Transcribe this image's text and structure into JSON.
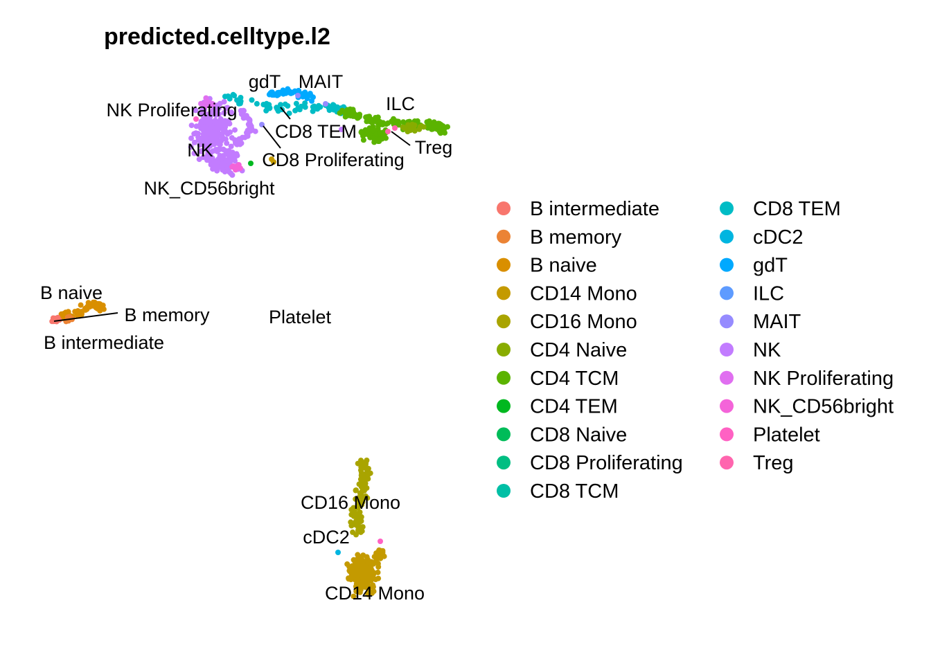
{
  "chart_data": {
    "type": "scatter",
    "title": "predicted.celltype.l2",
    "xlabel": "",
    "ylabel": "",
    "grid": false,
    "axes_visible": false,
    "legend_position": "right",
    "legend_columns": 2,
    "series": [
      {
        "name": "B intermediate",
        "color": "#F8766D"
      },
      {
        "name": "B memory",
        "color": "#EB8335"
      },
      {
        "name": "B naive",
        "color": "#D98F00"
      },
      {
        "name": "CD14 Mono",
        "color": "#C49A00"
      },
      {
        "name": "CD16 Mono",
        "color": "#A9A400"
      },
      {
        "name": "CD4 Naive",
        "color": "#88AC00"
      },
      {
        "name": "CD4 TCM",
        "color": "#5BB300"
      },
      {
        "name": "CD4 TEM",
        "color": "#00B81F"
      },
      {
        "name": "CD8 Naive",
        "color": "#00BC59"
      },
      {
        "name": "CD8 Proliferating",
        "color": "#00BE82"
      },
      {
        "name": "CD8 TCM",
        "color": "#00BFA5"
      },
      {
        "name": "CD8 TEM",
        "color": "#00BCC5"
      },
      {
        "name": "cDC2",
        "color": "#00B5E0"
      },
      {
        "name": "gdT",
        "color": "#00A9FF"
      },
      {
        "name": "ILC",
        "color": "#5E9BFF"
      },
      {
        "name": "MAIT",
        "color": "#968BFF"
      },
      {
        "name": "NK",
        "color": "#C27CFF"
      },
      {
        "name": "NK Proliferating",
        "color": "#E06FF0"
      },
      {
        "name": "NK_CD56bright",
        "color": "#F464D9"
      },
      {
        "name": "Platelet",
        "color": "#FF61C3"
      },
      {
        "name": "Treg",
        "color": "#FF65AE"
      }
    ],
    "cluster_labels": [
      {
        "text": "gdT",
        "x": 382,
        "y": 118
      },
      {
        "text": "MAIT",
        "x": 463,
        "y": 118
      },
      {
        "text": "ILC",
        "x": 578,
        "y": 150
      },
      {
        "text": "NK Proliferating",
        "x": 248,
        "y": 159
      },
      {
        "text": "CD8 TEM",
        "x": 456,
        "y": 190
      },
      {
        "text": "Treg",
        "x": 626,
        "y": 213
      },
      {
        "text": "NK",
        "x": 289,
        "y": 217
      },
      {
        "text": "CD8 Proliferating",
        "x": 481,
        "y": 231
      },
      {
        "text": "NK_CD56bright",
        "x": 302,
        "y": 272
      },
      {
        "text": "B naive",
        "x": 103,
        "y": 423
      },
      {
        "text": "B memory",
        "x": 241,
        "y": 455
      },
      {
        "text": "Platelet",
        "x": 433,
        "y": 458
      },
      {
        "text": "B intermediate",
        "x": 150,
        "y": 495
      },
      {
        "text": "CD16 Mono",
        "x": 506,
        "y": 726
      },
      {
        "text": "cDC2",
        "x": 471,
        "y": 776
      },
      {
        "text": "CD14 Mono",
        "x": 541,
        "y": 857
      }
    ]
  }
}
